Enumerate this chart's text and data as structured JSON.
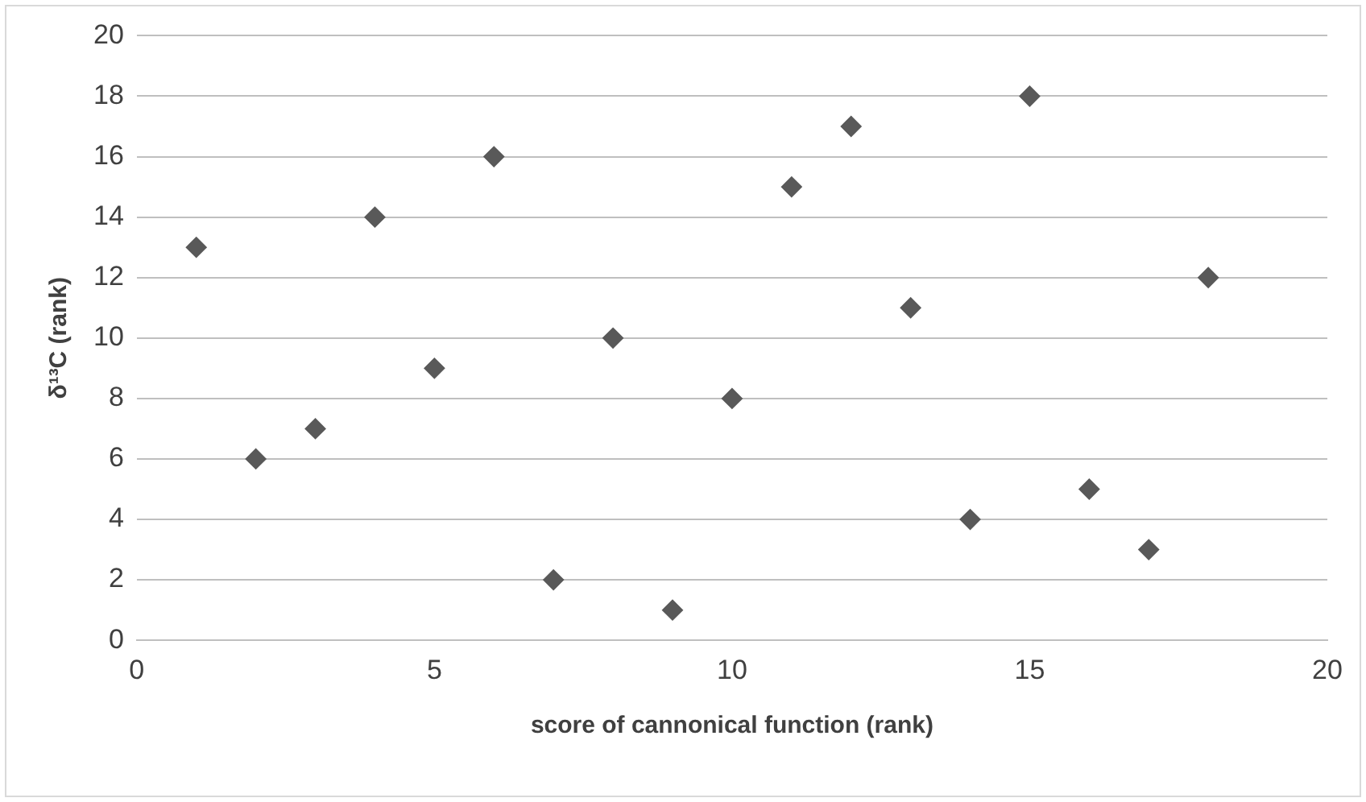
{
  "chart_data": {
    "type": "scatter",
    "xlabel": "score of cannonical function (rank)",
    "ylabel": "δ¹³C (rank)",
    "x": [
      1,
      2,
      3,
      4,
      5,
      6,
      7,
      8,
      9,
      10,
      11,
      12,
      13,
      14,
      15,
      16,
      17,
      18
    ],
    "series": [
      {
        "color": "#595959",
        "values": [
          13,
          6,
          7,
          14,
          9,
          16,
          2,
          10,
          1,
          8,
          15,
          17,
          11,
          4,
          18,
          5,
          3,
          12
        ]
      }
    ],
    "xlim": [
      0,
      20
    ],
    "xticks": [
      0,
      5,
      10,
      15,
      20
    ],
    "ylim": [
      0,
      20
    ],
    "yticks": [
      0,
      2,
      4,
      6,
      8,
      10,
      12,
      14,
      16,
      18,
      20
    ],
    "grid": "y",
    "legend": false,
    "marker": "diamond"
  }
}
